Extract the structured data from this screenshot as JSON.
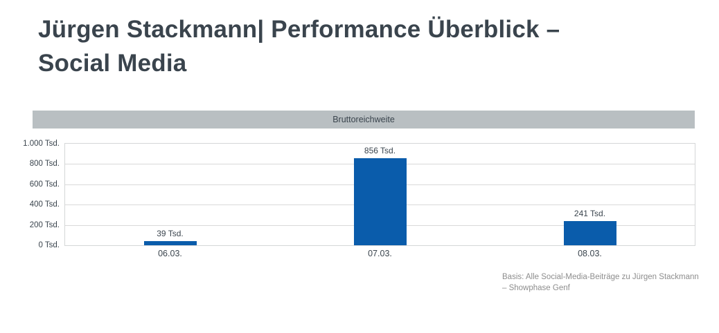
{
  "title": {
    "line1": "Jürgen Stackmann| Performance Überblick –",
    "line2": "Social Media",
    "color": "#3a444d"
  },
  "chart_header": {
    "background": "#b9bfc2"
  },
  "chart_data": {
    "type": "bar",
    "title": "Bruttoreichweite",
    "categories": [
      "06.03.",
      "07.03.",
      "08.03."
    ],
    "values": [
      39,
      856,
      241
    ],
    "value_labels": [
      "39 Tsd.",
      "856 Tsd.",
      "241 Tsd."
    ],
    "unit": "Tsd.",
    "ylim": [
      0,
      1000
    ],
    "ytick_step": 200,
    "ytick_labels": [
      "1.000 Tsd.",
      "800 Tsd.",
      "600 Tsd.",
      "400 Tsd.",
      "200 Tsd.",
      "0 Tsd."
    ],
    "bar_color": "#0a5cab",
    "grid": true,
    "legend_position": "none"
  },
  "footer": {
    "line1": "Basis: Alle Social-Media-Beiträge zu Jürgen Stackmann",
    "line2": "– Showphase Genf",
    "color": "#8d8d8d"
  }
}
